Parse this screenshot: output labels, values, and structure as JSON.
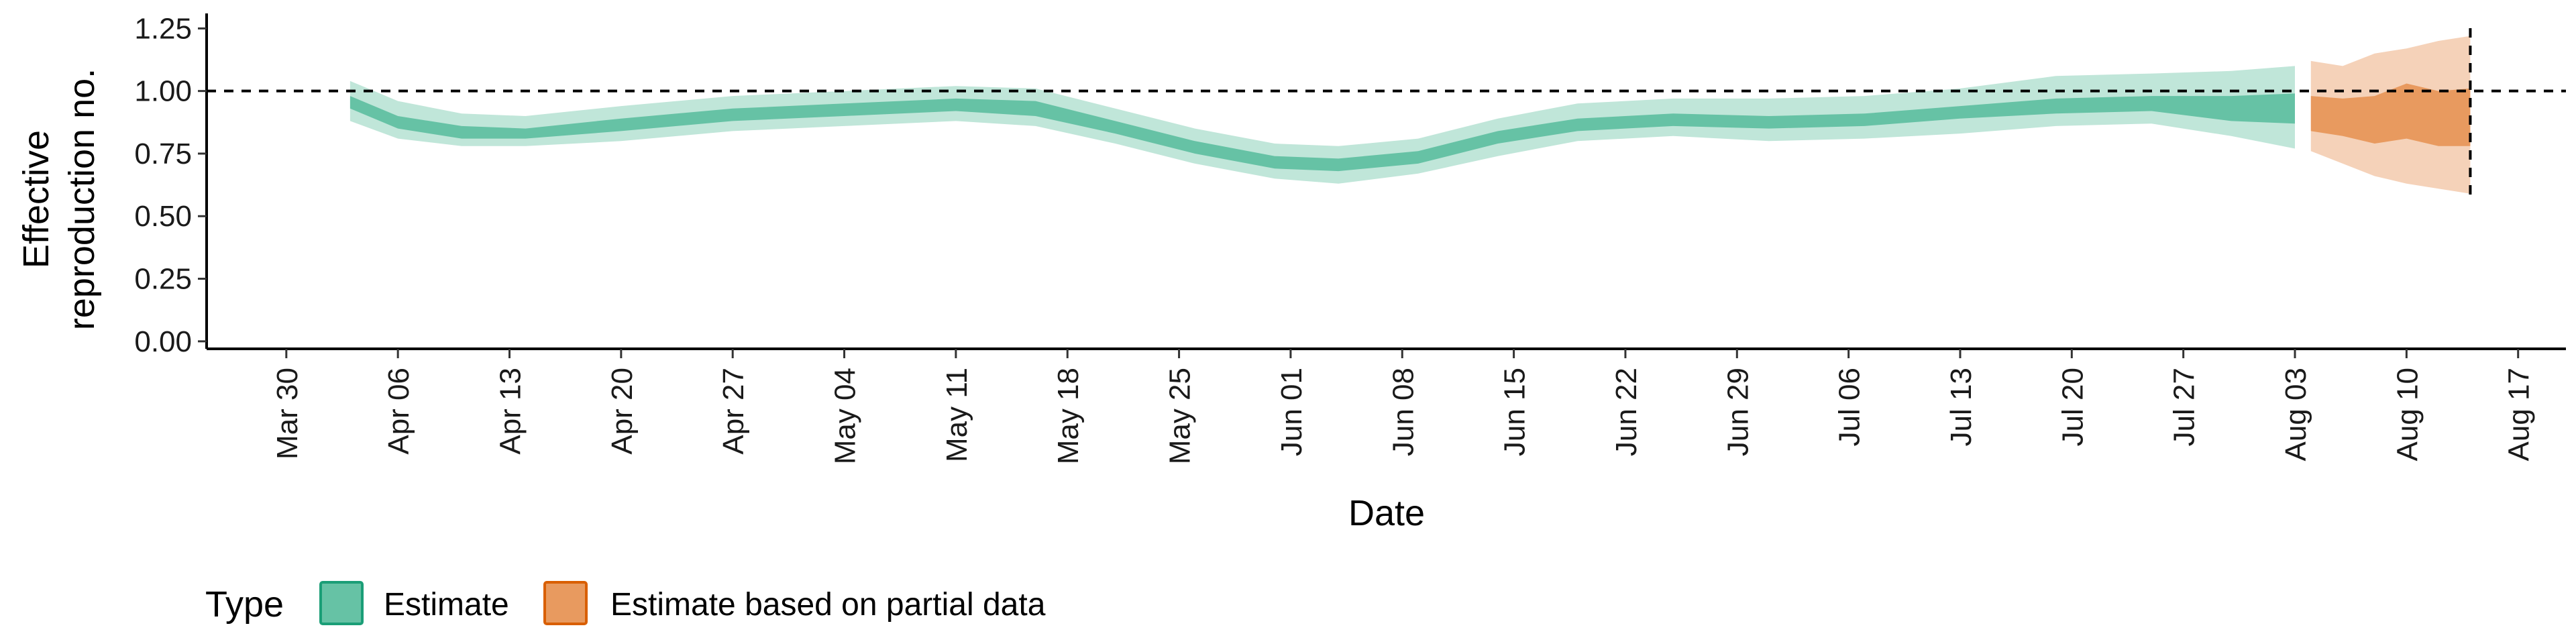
{
  "chart_data": {
    "type": "area",
    "xlabel": "Date",
    "ylabel_lines": [
      "Effective",
      "reproduction no."
    ],
    "y_ticks": [
      "0.00",
      "0.25",
      "0.50",
      "0.75",
      "1.00",
      "1.25"
    ],
    "y_tick_values": [
      0,
      0.25,
      0.5,
      0.75,
      1.0,
      1.25
    ],
    "ylim": [
      -0.03,
      1.31
    ],
    "x_range": [
      "2020-03-25",
      "2020-08-20"
    ],
    "x_ticks": [
      "Mar 30",
      "Apr 06",
      "Apr 13",
      "Apr 20",
      "Apr 27",
      "May 04",
      "May 11",
      "May 18",
      "May 25",
      "Jun 01",
      "Jun 08",
      "Jun 15",
      "Jun 22",
      "Jun 29",
      "Jul 06",
      "Jul 13",
      "Jul 20",
      "Jul 27",
      "Aug 03",
      "Aug 10",
      "Aug 17"
    ],
    "x_tick_dates": [
      "2020-03-30",
      "2020-04-06",
      "2020-04-13",
      "2020-04-20",
      "2020-04-27",
      "2020-05-04",
      "2020-05-11",
      "2020-05-18",
      "2020-05-25",
      "2020-06-01",
      "2020-06-08",
      "2020-06-15",
      "2020-06-22",
      "2020-06-29",
      "2020-07-06",
      "2020-07-13",
      "2020-07-20",
      "2020-07-27",
      "2020-08-03",
      "2020-08-10",
      "2020-08-17"
    ],
    "hline": 1.0,
    "vline_date": "2020-08-14",
    "legend": {
      "title": "Type",
      "position": "bottom-left",
      "entries": [
        {
          "label": "Estimate",
          "fill": "#66c2a5",
          "stroke": "#1b9e77"
        },
        {
          "label": "Estimate based on partial data",
          "fill": "#e89a5f",
          "stroke": "#d95f02"
        }
      ]
    },
    "series": [
      {
        "name": "Estimate",
        "colors": {
          "outer": "#c0e6d9",
          "inner": "#66c2a5"
        },
        "points": [
          {
            "date": "2020-04-03",
            "outer": [
              0.88,
              1.04
            ],
            "inner": [
              0.93,
              0.98
            ]
          },
          {
            "date": "2020-04-06",
            "outer": [
              0.81,
              0.96
            ],
            "inner": [
              0.85,
              0.9
            ]
          },
          {
            "date": "2020-04-10",
            "outer": [
              0.78,
              0.91
            ],
            "inner": [
              0.81,
              0.86
            ]
          },
          {
            "date": "2020-04-14",
            "outer": [
              0.78,
              0.9
            ],
            "inner": [
              0.81,
              0.85
            ]
          },
          {
            "date": "2020-04-20",
            "outer": [
              0.8,
              0.94
            ],
            "inner": [
              0.84,
              0.89
            ]
          },
          {
            "date": "2020-04-27",
            "outer": [
              0.84,
              0.98
            ],
            "inner": [
              0.88,
              0.93
            ]
          },
          {
            "date": "2020-05-04",
            "outer": [
              0.86,
              1.0
            ],
            "inner": [
              0.9,
              0.95
            ]
          },
          {
            "date": "2020-05-11",
            "outer": [
              0.88,
              1.02
            ],
            "inner": [
              0.92,
              0.97
            ]
          },
          {
            "date": "2020-05-16",
            "outer": [
              0.86,
              1.01
            ],
            "inner": [
              0.9,
              0.96
            ]
          },
          {
            "date": "2020-05-21",
            "outer": [
              0.79,
              0.93
            ],
            "inner": [
              0.83,
              0.88
            ]
          },
          {
            "date": "2020-05-26",
            "outer": [
              0.71,
              0.85
            ],
            "inner": [
              0.75,
              0.8
            ]
          },
          {
            "date": "2020-05-31",
            "outer": [
              0.65,
              0.79
            ],
            "inner": [
              0.69,
              0.74
            ]
          },
          {
            "date": "2020-06-04",
            "outer": [
              0.63,
              0.78
            ],
            "inner": [
              0.68,
              0.73
            ]
          },
          {
            "date": "2020-06-09",
            "outer": [
              0.67,
              0.81
            ],
            "inner": [
              0.71,
              0.76
            ]
          },
          {
            "date": "2020-06-14",
            "outer": [
              0.74,
              0.89
            ],
            "inner": [
              0.79,
              0.84
            ]
          },
          {
            "date": "2020-06-19",
            "outer": [
              0.8,
              0.95
            ],
            "inner": [
              0.84,
              0.89
            ]
          },
          {
            "date": "2020-06-25",
            "outer": [
              0.82,
              0.97
            ],
            "inner": [
              0.86,
              0.91
            ]
          },
          {
            "date": "2020-07-01",
            "outer": [
              0.8,
              0.97
            ],
            "inner": [
              0.85,
              0.9
            ]
          },
          {
            "date": "2020-07-07",
            "outer": [
              0.81,
              0.98
            ],
            "inner": [
              0.86,
              0.91
            ]
          },
          {
            "date": "2020-07-13",
            "outer": [
              0.83,
              1.01
            ],
            "inner": [
              0.89,
              0.94
            ]
          },
          {
            "date": "2020-07-19",
            "outer": [
              0.86,
              1.06
            ],
            "inner": [
              0.91,
              0.97
            ]
          },
          {
            "date": "2020-07-25",
            "outer": [
              0.87,
              1.07
            ],
            "inner": [
              0.92,
              0.98
            ]
          },
          {
            "date": "2020-07-30",
            "outer": [
              0.82,
              1.08
            ],
            "inner": [
              0.88,
              0.98
            ]
          },
          {
            "date": "2020-08-03",
            "outer": [
              0.77,
              1.1
            ],
            "inner": [
              0.87,
              0.99
            ]
          }
        ]
      },
      {
        "name": "Estimate based on partial data",
        "colors": {
          "outer": "#f5d2b9",
          "inner": "#e89a5f"
        },
        "points": [
          {
            "date": "2020-08-04",
            "outer": [
              0.76,
              1.12
            ],
            "inner": [
              0.84,
              0.98
            ]
          },
          {
            "date": "2020-08-06",
            "outer": [
              0.71,
              1.1
            ],
            "inner": [
              0.82,
              0.97
            ]
          },
          {
            "date": "2020-08-08",
            "outer": [
              0.66,
              1.15
            ],
            "inner": [
              0.79,
              0.98
            ]
          },
          {
            "date": "2020-08-10",
            "outer": [
              0.63,
              1.17
            ],
            "inner": [
              0.81,
              1.03
            ]
          },
          {
            "date": "2020-08-12",
            "outer": [
              0.61,
              1.2
            ],
            "inner": [
              0.78,
              1.0
            ]
          },
          {
            "date": "2020-08-14",
            "outer": [
              0.59,
              1.22
            ],
            "inner": [
              0.78,
              1.01
            ]
          }
        ]
      }
    ]
  }
}
